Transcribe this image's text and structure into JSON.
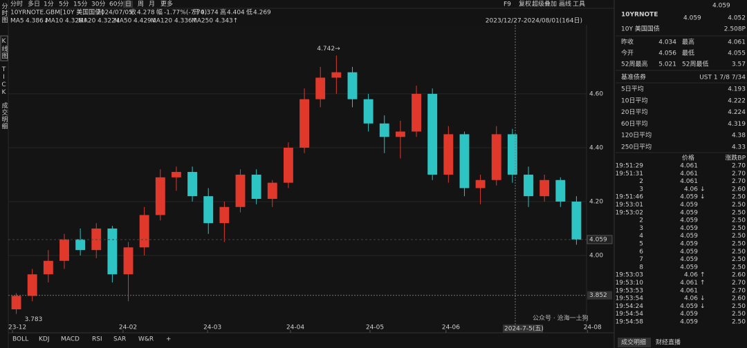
{
  "toolbar": {
    "periods": [
      "分时",
      "多日",
      "1分",
      "5分",
      "15分",
      "30分",
      "60分",
      "日",
      "周",
      "月",
      "更多"
    ],
    "tools": [
      "F9",
      "复权",
      "超级叠加",
      "画线",
      "工具"
    ]
  },
  "sidebar": [
    "分时图",
    "K线图",
    "TICK",
    "成交明细"
  ],
  "info": {
    "symbol": "10YRNOTE.GBM[10Y 美国国债]",
    "date": "2024/07/05",
    "close_label": "收",
    "close": 4.278,
    "change_label": "幅",
    "change": "-1.77%(-7.70)",
    "open_label": "开",
    "open": 4.374,
    "high_label": "高",
    "high": 4.404,
    "low_label": "低",
    "low": 4.269
  },
  "ma_legend": [
    {
      "name": "MA5",
      "color": "#e8a030",
      "value": 4.386,
      "label": "4.386↓"
    },
    {
      "name": "MA10",
      "color": "#e0d040",
      "value": 4.328,
      "label": "4.328↑"
    },
    {
      "name": "MA20",
      "color": "#c050c0",
      "value": 4.322,
      "label": "4.322↓"
    },
    {
      "name": "MA50",
      "color": "#40c040",
      "value": 4.429,
      "label": "4.429↓"
    },
    {
      "name": "MA120",
      "color": "#40c0c0",
      "value": 4.336,
      "label": "4.336↑"
    },
    {
      "name": "MA250",
      "color": "#e05050",
      "value": 4.343,
      "label": "4.343↑"
    }
  ],
  "range": "2023/12/27-2024/08/01(164日)",
  "chart_data": {
    "type": "candlestick",
    "up_color": "#e0392b",
    "down_color": "#2ec4c4",
    "open": [
      3.8,
      3.85,
      3.93,
      3.98,
      4.06,
      4.02,
      4.1,
      3.93,
      4.03,
      4.15,
      4.29,
      4.31,
      4.22,
      4.12,
      4.18,
      4.3,
      4.21,
      4.27,
      4.4,
      4.58,
      4.66,
      4.68,
      4.58,
      4.49,
      4.44,
      4.46,
      4.6,
      4.3,
      4.45,
      4.25,
      4.28,
      4.45,
      4.3,
      4.22,
      4.28,
      4.2
    ],
    "high": [
      3.86,
      3.95,
      4.02,
      4.08,
      4.1,
      4.12,
      4.11,
      4.05,
      4.18,
      4.32,
      4.33,
      4.33,
      4.25,
      4.2,
      4.32,
      4.32,
      4.28,
      4.42,
      4.62,
      4.7,
      4.742,
      4.7,
      4.6,
      4.52,
      4.5,
      4.63,
      4.62,
      4.48,
      4.46,
      4.3,
      4.48,
      4.47,
      4.33,
      4.3,
      4.29,
      4.22
    ],
    "low": [
      3.783,
      3.83,
      3.9,
      3.95,
      4.0,
      3.99,
      3.9,
      3.83,
      4.0,
      4.13,
      4.24,
      4.2,
      4.08,
      4.05,
      4.16,
      4.19,
      4.18,
      4.25,
      4.38,
      4.55,
      4.6,
      4.55,
      4.46,
      4.38,
      4.36,
      4.44,
      4.28,
      4.27,
      4.22,
      4.19,
      4.26,
      4.27,
      4.18,
      4.2,
      4.18,
      4.04
    ],
    "close": [
      3.85,
      3.93,
      3.98,
      4.06,
      4.02,
      4.1,
      3.93,
      4.03,
      4.15,
      4.29,
      4.31,
      4.22,
      4.12,
      4.18,
      4.3,
      4.21,
      4.27,
      4.4,
      4.58,
      4.66,
      4.68,
      4.58,
      4.49,
      4.44,
      4.46,
      4.6,
      4.3,
      4.45,
      4.25,
      4.28,
      4.45,
      4.3,
      4.22,
      4.28,
      4.2,
      4.059
    ],
    "xlim": [
      -0.5,
      35.5
    ],
    "xticks": [
      {
        "value": -0.24,
        "label": "23-12"
      },
      {
        "value": 6.67,
        "label": "24-02"
      },
      {
        "value": 11.95,
        "label": "24-03"
      },
      {
        "value": 17.13,
        "label": "24-04"
      },
      {
        "value": 22.1,
        "label": "24-05"
      },
      {
        "value": 26.85,
        "label": "24-06"
      },
      {
        "value": 35.7,
        "label": "24-08"
      }
    ],
    "ylim": [
      3.718,
      4.856
    ],
    "yticks": [
      {
        "value": 4.0,
        "label": "4.00"
      },
      {
        "value": 4.2,
        "label": "4.20"
      },
      {
        "value": 4.4,
        "label": "4.40"
      },
      {
        "value": 4.6,
        "label": "4.60"
      }
    ],
    "annotations": [
      {
        "value": 4.742,
        "label": "4.742→"
      },
      {
        "value": 3.783,
        "label": "3.783"
      }
    ],
    "markers": [
      3.852,
      4.059
    ],
    "crosshair_label": "2024-7-5(五)"
  },
  "indicator_tabs": [
    "BOLL",
    "KDJ",
    "MACD",
    "RSI",
    "SAR",
    "W&R",
    "+"
  ],
  "quote": {
    "code": "10YRNOTE",
    "top_price": 4.059,
    "bid": 4.059,
    "ask": 4.052,
    "name": "10Y 美国国债",
    "change": "2.508P"
  },
  "stats": [
    [
      "昨收",
      4.034,
      "最高",
      4.061
    ],
    [
      "今开",
      4.056,
      "最低",
      4.055
    ],
    [
      "52周最高",
      5.021,
      "52周最低",
      3.57
    ]
  ],
  "benchmark": {
    "label": "基准债券",
    "value": "UST 1 7/8 7/34"
  },
  "averages": [
    [
      "5日平均",
      4.193
    ],
    [
      "10日平均",
      4.222
    ],
    [
      "20日平均",
      4.224
    ],
    [
      "60日平均",
      4.319
    ],
    [
      "120日平均",
      4.38
    ],
    [
      "250日平均",
      4.33
    ]
  ],
  "trades": {
    "price_header": "价格",
    "bp_header": "涨跌BP",
    "rows": [
      [
        "19:51:29",
        4.061,
        "",
        "2.70"
      ],
      [
        "19:51:31",
        4.061,
        "",
        "2.70"
      ],
      [
        "2",
        4.061,
        "",
        "2.70"
      ],
      [
        "3",
        4.06,
        "↓",
        "2.60"
      ],
      [
        "19:51:46",
        4.059,
        "↓",
        "2.50"
      ],
      [
        "19:53:01",
        4.059,
        "",
        "2.50"
      ],
      [
        "19:53:02",
        4.059,
        "",
        "2.50"
      ],
      [
        "2",
        4.059,
        "",
        "2.50"
      ],
      [
        "3",
        4.059,
        "",
        "2.50"
      ],
      [
        "4",
        4.059,
        "",
        "2.50"
      ],
      [
        "5",
        4.059,
        "",
        "2.50"
      ],
      [
        "6",
        4.059,
        "",
        "2.50"
      ],
      [
        "7",
        4.059,
        "",
        "2.50"
      ],
      [
        "8",
        4.059,
        "",
        "2.50"
      ],
      [
        "19:53:03",
        4.06,
        "↑",
        "2.60"
      ],
      [
        "19:53:10",
        4.061,
        "↑",
        "2.70"
      ],
      [
        "19:53:53",
        4.061,
        "",
        "2.70"
      ],
      [
        "19:53:54",
        4.06,
        "↓",
        "2.60"
      ],
      [
        "19:54:24",
        4.059,
        "↓",
        "2.50"
      ],
      [
        "19:54:54",
        4.059,
        "",
        "2.50"
      ],
      [
        "19:54:58",
        4.059,
        "",
        "2.50"
      ]
    ]
  },
  "panel_tabs": [
    "成交明细",
    "财经直播"
  ],
  "watermark": "公众号 · 沧海一土狗"
}
